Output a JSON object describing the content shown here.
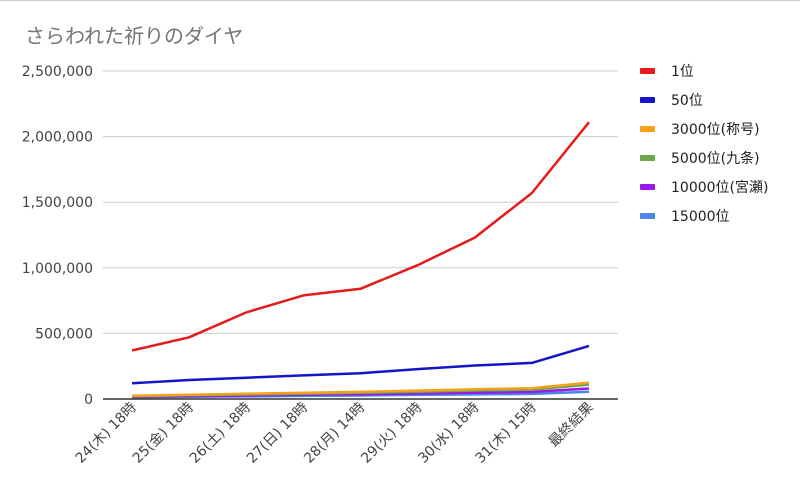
{
  "chart_data": {
    "type": "line",
    "title": "さらわれた祈りのダイヤ",
    "categories": [
      "24(木) 18時",
      "25(金) 18時",
      "26(土) 18時",
      "27(日) 18時",
      "28(月) 14時",
      "29(火) 18時",
      "30(水) 18時",
      "31(木) 15時",
      "最終結果"
    ],
    "y_ticks": [
      "0",
      "500,000",
      "1,000,000",
      "1,500,000",
      "2,000,000",
      "2,500,000"
    ],
    "ylim": [
      0,
      2500000
    ],
    "grid": true,
    "legend_position": "right",
    "series": [
      {
        "name": "1位",
        "color": "#e41a1c",
        "values": [
          370000,
          470000,
          660000,
          790000,
          840000,
          1020000,
          1230000,
          1570000,
          2110000
        ]
      },
      {
        "name": "50位",
        "color": "#1515c8",
        "values": [
          120000,
          145000,
          162000,
          180000,
          197000,
          228000,
          255000,
          275000,
          405000
        ]
      },
      {
        "name": "3000位(称号)",
        "color": "#f7a11a",
        "values": [
          25000,
          32000,
          40000,
          47000,
          54000,
          64000,
          74000,
          82000,
          125000
        ]
      },
      {
        "name": "5000位(九条)",
        "color": "#6aa84f",
        "values": [
          22000,
          28000,
          35000,
          41000,
          47000,
          56000,
          65000,
          72000,
          110000
        ]
      },
      {
        "name": "10000位(宮瀬)",
        "color": "#9b18e8",
        "values": [
          18000,
          22000,
          27000,
          32000,
          36000,
          42000,
          48000,
          54000,
          80000
        ]
      },
      {
        "name": "15000位",
        "color": "#4a86e8",
        "values": [
          14000,
          17000,
          20000,
          24000,
          27000,
          31000,
          35000,
          39000,
          55000
        ]
      }
    ]
  }
}
